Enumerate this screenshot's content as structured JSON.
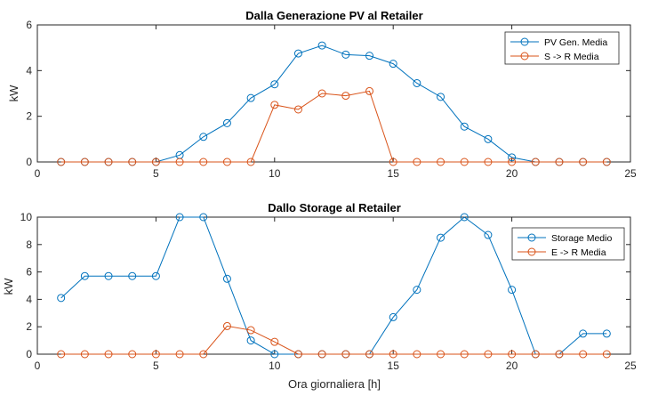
{
  "colors": {
    "series1": "#0072BD",
    "series2": "#D95319",
    "axis": "#262626"
  },
  "chart_data": [
    {
      "type": "line",
      "title": "Dalla Generazione PV al Retailer",
      "xlabel": "",
      "ylabel": "kW",
      "xlim": [
        0,
        25
      ],
      "ylim": [
        0,
        6
      ],
      "xticks": [
        0,
        5,
        10,
        15,
        20,
        25
      ],
      "yticks": [
        0,
        2,
        4,
        6
      ],
      "grid": false,
      "legend_position": "top-right",
      "x": [
        1,
        2,
        3,
        4,
        5,
        6,
        7,
        8,
        9,
        10,
        11,
        12,
        13,
        14,
        15,
        16,
        17,
        18,
        19,
        20,
        21,
        22,
        23,
        24
      ],
      "series": [
        {
          "name": "PV Gen. Media",
          "values": [
            0,
            0,
            0,
            0,
            0,
            0.3,
            1.1,
            1.7,
            2.8,
            3.4,
            4.75,
            5.1,
            4.7,
            4.65,
            4.3,
            3.45,
            2.85,
            1.55,
            1.0,
            0.2,
            0,
            0,
            0,
            0
          ]
        },
        {
          "name": "S -> R Media",
          "values": [
            0,
            0,
            0,
            0,
            0,
            0,
            0,
            0,
            0,
            2.5,
            2.3,
            3.0,
            2.9,
            3.1,
            0,
            0,
            0,
            0,
            0,
            0,
            0,
            0,
            0,
            0
          ]
        }
      ]
    },
    {
      "type": "line",
      "title": "Dallo Storage al Retailer",
      "xlabel": "Ora giornaliera [h]",
      "ylabel": "kW",
      "xlim": [
        0,
        25
      ],
      "ylim": [
        0,
        10
      ],
      "xticks": [
        0,
        5,
        10,
        15,
        20,
        25
      ],
      "yticks": [
        0,
        2,
        4,
        6,
        8,
        10
      ],
      "grid": false,
      "legend_position": "top-right",
      "x": [
        1,
        2,
        3,
        4,
        5,
        6,
        7,
        8,
        9,
        10,
        11,
        12,
        13,
        14,
        15,
        16,
        17,
        18,
        19,
        20,
        21,
        22,
        23,
        24
      ],
      "series": [
        {
          "name": "Storage Medio",
          "values": [
            4.1,
            5.7,
            5.7,
            5.7,
            5.7,
            10.0,
            10.0,
            5.5,
            1.0,
            0,
            0,
            0,
            0,
            0,
            2.7,
            4.7,
            8.5,
            10.0,
            8.7,
            4.7,
            0,
            0,
            1.5,
            1.5
          ]
        },
        {
          "name": "E -> R Media",
          "values": [
            0,
            0,
            0,
            0,
            0,
            0,
            0,
            2.05,
            1.75,
            0.9,
            0,
            0,
            0,
            0,
            0,
            0,
            0,
            0,
            0,
            0,
            0,
            0,
            0,
            0
          ]
        }
      ]
    }
  ]
}
